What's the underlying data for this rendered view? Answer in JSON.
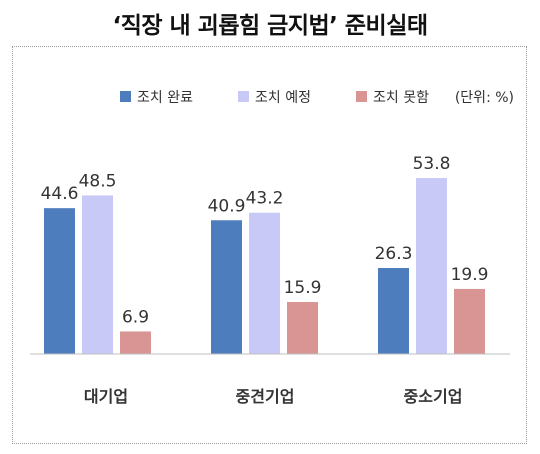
{
  "title": "‘직장 내 괴롭힘 금지법’ 준비실태",
  "unit": "(단위: %)",
  "colors": {
    "done": "#4e7dbd",
    "planned": "#c9c9f7",
    "notyet": "#d99594"
  },
  "chart_data": {
    "type": "bar",
    "title": "‘직장 내 괴롭힘 금지법’ 준비실태",
    "categories": [
      "대기업",
      "중견기업",
      "중소기업"
    ],
    "series": [
      {
        "name": "조치 완료",
        "values": [
          44.6,
          40.9,
          26.3
        ],
        "color": "#4e7dbd"
      },
      {
        "name": "조치 예정",
        "values": [
          48.5,
          43.2,
          53.8
        ],
        "color": "#c9c9f7"
      },
      {
        "name": "조치 못함",
        "values": [
          6.9,
          15.9,
          19.9
        ],
        "color": "#d99594"
      }
    ],
    "ylim": [
      0,
      60
    ],
    "grid": false,
    "legend": "top-right",
    "data_labels": true
  }
}
